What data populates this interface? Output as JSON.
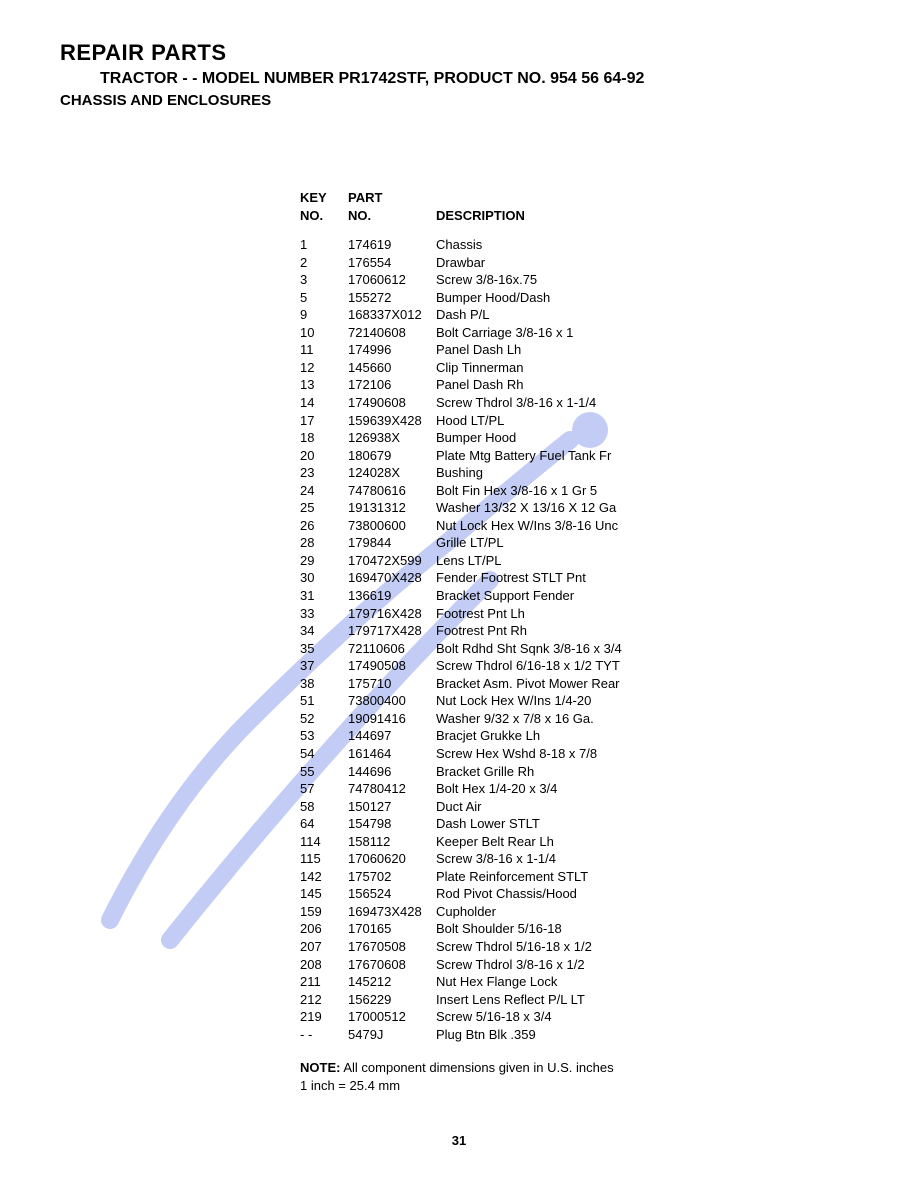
{
  "header": {
    "main": "REPAIR PARTS",
    "sub": "TRACTOR - - MODEL NUMBER PR1742STF, PRODUCT NO. 954 56 64-92",
    "section": "CHASSIS AND ENCLOSURES"
  },
  "columns": {
    "key1": "KEY",
    "key2": "NO.",
    "part1": "PART",
    "part2": "NO.",
    "desc": "DESCRIPTION"
  },
  "rows": [
    {
      "k": "1",
      "p": "174619",
      "d": "Chassis"
    },
    {
      "k": "2",
      "p": "176554",
      "d": "Drawbar"
    },
    {
      "k": "3",
      "p": "17060612",
      "d": "Screw 3/8-16x.75"
    },
    {
      "k": "5",
      "p": "155272",
      "d": "Bumper Hood/Dash"
    },
    {
      "k": "9",
      "p": "168337X012",
      "d": "Dash P/L"
    },
    {
      "k": "10",
      "p": "72140608",
      "d": "Bolt Carriage  3/8-16 x 1"
    },
    {
      "k": "11",
      "p": "174996",
      "d": "Panel Dash Lh"
    },
    {
      "k": "12",
      "p": "145660",
      "d": "Clip Tinnerman"
    },
    {
      "k": "13",
      "p": "172106",
      "d": "Panel Dash Rh"
    },
    {
      "k": "14",
      "p": "17490608",
      "d": "Screw Thdrol 3/8-16 x 1-1/4"
    },
    {
      "k": "17",
      "p": "159639X428",
      "d": "Hood LT/PL"
    },
    {
      "k": "18",
      "p": "126938X",
      "d": "Bumper Hood"
    },
    {
      "k": "20",
      "p": "180679",
      "d": "Plate Mtg Battery Fuel Tank Fr"
    },
    {
      "k": "23",
      "p": "124028X",
      "d": "Bushing"
    },
    {
      "k": "24",
      "p": "74780616",
      "d": "Bolt Fin Hex 3/8-16 x 1 Gr 5"
    },
    {
      "k": "25",
      "p": "19131312",
      "d": "Washer 13/32 X 13/16 X 12 Ga"
    },
    {
      "k": "26",
      "p": "73800600",
      "d": "Nut Lock Hex W/Ins  3/8-16 Unc"
    },
    {
      "k": "28",
      "p": "179844",
      "d": "Grille LT/PL"
    },
    {
      "k": "29",
      "p": "170472X599",
      "d": "Lens LT/PL"
    },
    {
      "k": "30",
      "p": "169470X428",
      "d": "Fender Footrest STLT Pnt"
    },
    {
      "k": "31",
      "p": "136619",
      "d": "Bracket Support Fender"
    },
    {
      "k": "33",
      "p": "179716X428",
      "d": "Footrest Pnt Lh"
    },
    {
      "k": "34",
      "p": "179717X428",
      "d": "Footrest Pnt Rh"
    },
    {
      "k": "35",
      "p": "72110606",
      "d": "Bolt Rdhd Sht Sqnk 3/8-16 x 3/4"
    },
    {
      "k": "37",
      "p": "17490508",
      "d": "Screw Thdrol 6/16-18 x 1/2 TYT"
    },
    {
      "k": "38",
      "p": "175710",
      "d": "Bracket Asm. Pivot Mower Rear"
    },
    {
      "k": "51",
      "p": "73800400",
      "d": "Nut Lock Hex W/Ins  1/4-20"
    },
    {
      "k": "52",
      "p": "19091416",
      "d": "Washer  9/32 x 7/8 x 16 Ga."
    },
    {
      "k": "53",
      "p": "144697",
      "d": "Bracjet Grukke Lh"
    },
    {
      "k": "54",
      "p": "161464",
      "d": "Screw Hex Wshd 8-18 x 7/8"
    },
    {
      "k": "55",
      "p": "144696",
      "d": "Bracket Grille Rh"
    },
    {
      "k": "57",
      "p": "74780412",
      "d": "Bolt Hex  1/4-20 x 3/4"
    },
    {
      "k": "58",
      "p": "150127",
      "d": "Duct Air"
    },
    {
      "k": "64",
      "p": "154798",
      "d": "Dash Lower STLT"
    },
    {
      "k": "114",
      "p": "158112",
      "d": "Keeper Belt Rear Lh"
    },
    {
      "k": "115",
      "p": "17060620",
      "d": "Screw  3/8-16 x 1-1/4"
    },
    {
      "k": "142",
      "p": "175702",
      "d": "Plate Reinforcement STLT"
    },
    {
      "k": "145",
      "p": "156524",
      "d": "Rod Pivot Chassis/Hood"
    },
    {
      "k": "159",
      "p": "169473X428",
      "d": "Cupholder"
    },
    {
      "k": "206",
      "p": "170165",
      "d": "Bolt Shoulder 5/16-18"
    },
    {
      "k": "207",
      "p": "17670508",
      "d": "Screw Thdrol 5/16-18 x 1/2"
    },
    {
      "k": "208",
      "p": "17670608",
      "d": "Screw Thdrol 3/8-16 x 1/2"
    },
    {
      "k": "211",
      "p": "145212",
      "d": "Nut Hex Flange Lock"
    },
    {
      "k": "212",
      "p": "156229",
      "d": "Insert Lens Reflect P/L LT"
    },
    {
      "k": "219",
      "p": "17000512",
      "d": "Screw 5/16-18 x 3/4"
    },
    {
      "k": "- -",
      "p": "5479J",
      "d": "Plug Btn Blk .359"
    }
  ],
  "note": {
    "label": "NOTE:",
    "line1": " All component dimensions given in U.S. inches",
    "line2": "1 inch = 25.4 mm"
  },
  "page": "31",
  "watermark_color": "#7b8fe8"
}
